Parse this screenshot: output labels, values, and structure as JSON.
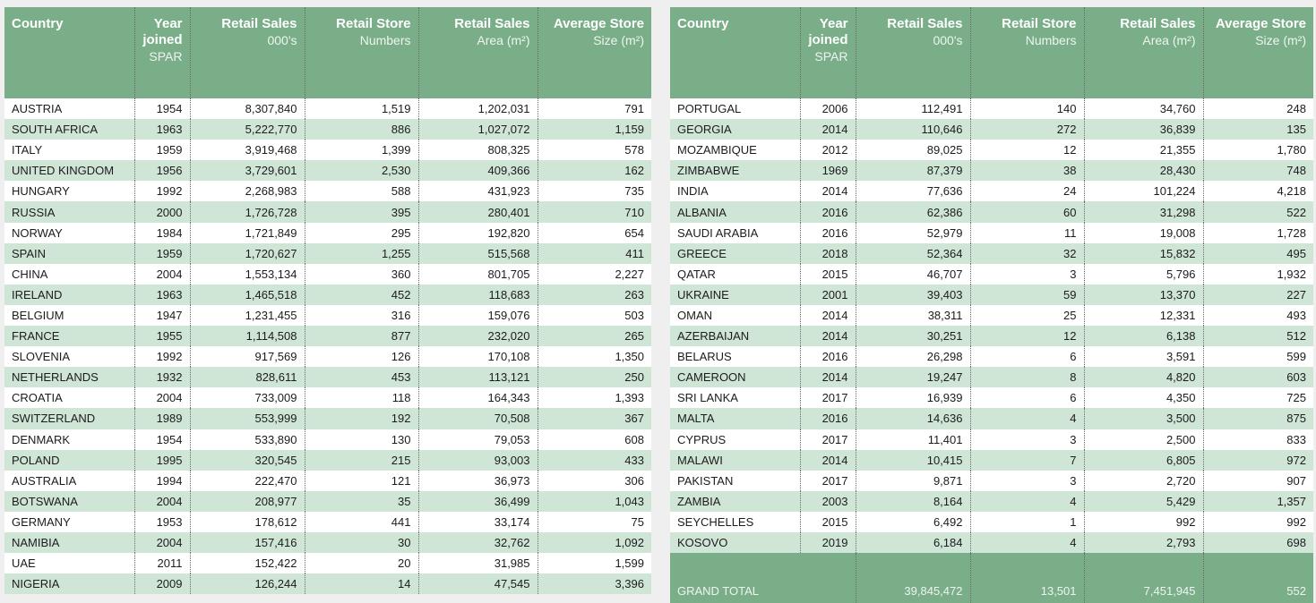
{
  "tables": [
    {
      "header": [
        {
          "bold": "Country"
        },
        {
          "bold": "Year joined",
          "sub": "SPAR"
        },
        {
          "bold": "Retail Sales",
          "sub": "000's"
        },
        {
          "bold": "Retail Store",
          "sub": "Numbers"
        },
        {
          "bold": "Retail Sales",
          "sub": "Area (m²)"
        },
        {
          "bold": "Average Store",
          "sub": "Size (m²)"
        }
      ],
      "rows": [
        [
          "AUSTRIA",
          "1954",
          "8,307,840",
          "1,519",
          "1,202,031",
          "791"
        ],
        [
          "SOUTH AFRICA",
          "1963",
          "5,222,770",
          "886",
          "1,027,072",
          "1,159"
        ],
        [
          "ITALY",
          "1959",
          "3,919,468",
          "1,399",
          "808,325",
          "578"
        ],
        [
          "UNITED KINGDOM",
          "1956",
          "3,729,601",
          "2,530",
          "409,366",
          "162"
        ],
        [
          "HUNGARY",
          "1992",
          "2,268,983",
          "588",
          "431,923",
          "735"
        ],
        [
          "RUSSIA",
          "2000",
          "1,726,728",
          "395",
          "280,401",
          "710"
        ],
        [
          "NORWAY",
          "1984",
          "1,721,849",
          "295",
          "192,820",
          "654"
        ],
        [
          "SPAIN",
          "1959",
          "1,720,627",
          "1,255",
          "515,568",
          "411"
        ],
        [
          "CHINA",
          "2004",
          "1,553,134",
          "360",
          "801,705",
          "2,227"
        ],
        [
          "IRELAND",
          "1963",
          "1,465,518",
          "452",
          "118,683",
          "263"
        ],
        [
          "BELGIUM",
          "1947",
          "1,231,455",
          "316",
          "159,076",
          "503"
        ],
        [
          "FRANCE",
          "1955",
          "1,114,508",
          "877",
          "232,020",
          "265"
        ],
        [
          "SLOVENIA",
          "1992",
          "917,569",
          "126",
          "170,108",
          "1,350"
        ],
        [
          "NETHERLANDS",
          "1932",
          "828,611",
          "453",
          "113,121",
          "250"
        ],
        [
          "CROATIA",
          "2004",
          "733,009",
          "118",
          "164,343",
          "1,393"
        ],
        [
          "SWITZERLAND",
          "1989",
          "553,999",
          "192",
          "70,508",
          "367"
        ],
        [
          "DENMARK",
          "1954",
          "533,890",
          "130",
          "79,053",
          "608"
        ],
        [
          "POLAND",
          "1995",
          "320,545",
          "215",
          "93,003",
          "433"
        ],
        [
          "AUSTRALIA",
          "1994",
          "222,470",
          "121",
          "36,973",
          "306"
        ],
        [
          "BOTSWANA",
          "2004",
          "208,977",
          "35",
          "36,499",
          "1,043"
        ],
        [
          "GERMANY",
          "1953",
          "178,612",
          "441",
          "33,174",
          "75"
        ],
        [
          "NAMIBIA",
          "2004",
          "157,416",
          "30",
          "32,762",
          "1,092"
        ],
        [
          "UAE",
          "2011",
          "152,422",
          "20",
          "31,985",
          "1,599"
        ],
        [
          "NIGERIA",
          "2009",
          "126,244",
          "14",
          "47,545",
          "3,396"
        ]
      ]
    },
    {
      "header": [
        {
          "bold": "Country"
        },
        {
          "bold": "Year joined",
          "sub": "SPAR"
        },
        {
          "bold": "Retail Sales",
          "sub": "000's"
        },
        {
          "bold": "Retail Store",
          "sub": "Numbers"
        },
        {
          "bold": "Retail Sales",
          "sub": "Area (m²)"
        },
        {
          "bold": "Average Store",
          "sub": "Size (m²)"
        }
      ],
      "rows": [
        [
          "PORTUGAL",
          "2006",
          "112,491",
          "140",
          "34,760",
          "248"
        ],
        [
          "GEORGIA",
          "2014",
          "110,646",
          "272",
          "36,839",
          "135"
        ],
        [
          "MOZAMBIQUE",
          "2012",
          "89,025",
          "12",
          "21,355",
          "1,780"
        ],
        [
          "ZIMBABWE",
          "1969",
          "87,379",
          "38",
          "28,430",
          "748"
        ],
        [
          "INDIA",
          "2014",
          "77,636",
          "24",
          "101,224",
          "4,218"
        ],
        [
          "ALBANIA",
          "2016",
          "62,386",
          "60",
          "31,298",
          "522"
        ],
        [
          "SAUDI ARABIA",
          "2016",
          "52,979",
          "11",
          "19,008",
          "1,728"
        ],
        [
          "GREECE",
          "2018",
          "52,364",
          "32",
          "15,832",
          "495"
        ],
        [
          "QATAR",
          "2015",
          "46,707",
          "3",
          "5,796",
          "1,932"
        ],
        [
          "UKRAINE",
          "2001",
          "39,403",
          "59",
          "13,370",
          "227"
        ],
        [
          "OMAN",
          "2014",
          "38,311",
          "25",
          "12,331",
          "493"
        ],
        [
          "AZERBAIJAN",
          "2014",
          "30,251",
          "12",
          "6,138",
          "512"
        ],
        [
          "BELARUS",
          "2016",
          "26,298",
          "6",
          "3,591",
          "599"
        ],
        [
          "CAMEROON",
          "2014",
          "19,247",
          "8",
          "4,820",
          "603"
        ],
        [
          "SRI LANKA",
          "2017",
          "16,939",
          "6",
          "4,350",
          "725"
        ],
        [
          "MALTA",
          "2016",
          "14,636",
          "4",
          "3,500",
          "875"
        ],
        [
          "CYPRUS",
          "2017",
          "11,401",
          "3",
          "2,500",
          "833"
        ],
        [
          "MALAWI",
          "2014",
          "10,415",
          "7",
          "6,805",
          "972"
        ],
        [
          "PAKISTAN",
          "2017",
          "9,871",
          "3",
          "2,720",
          "907"
        ],
        [
          "ZAMBIA",
          "2003",
          "8,164",
          "4",
          "5,429",
          "1,357"
        ],
        [
          "SEYCHELLES",
          "2015",
          "6,492",
          "1",
          "992",
          "992"
        ],
        [
          "KOSOVO",
          "2019",
          "6,184",
          "4",
          "2,793",
          "698"
        ]
      ],
      "total": {
        "label": "GRAND TOTAL",
        "values": [
          "39,845,472",
          "13,501",
          "7,451,945",
          "552"
        ]
      }
    }
  ]
}
